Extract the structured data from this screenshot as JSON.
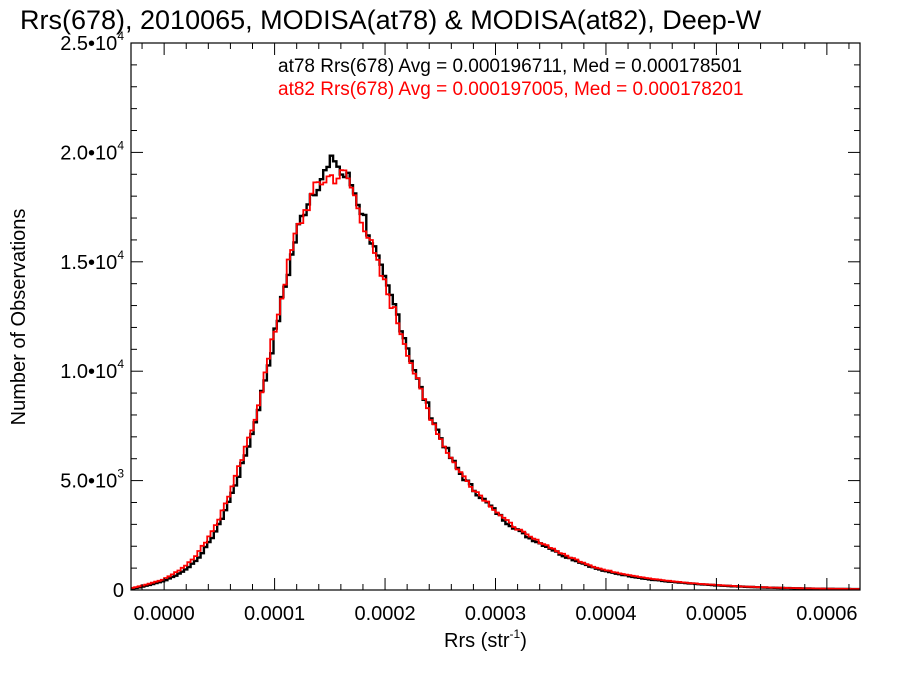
{
  "chart_data": {
    "type": "line",
    "title": "Rrs(678), 2010065, MODISA(at78) & MODISA(at82), Deep-W",
    "xlabel": "Rrs (str",
    "xlabel_exp": "-1",
    "xlabel_close": ")",
    "ylabel": "Number of Observations",
    "xlim": [
      -3e-05,
      0.00063
    ],
    "ylim": [
      0,
      25000
    ],
    "x_ticks": [
      {
        "value": 0.0,
        "label": "0.0000"
      },
      {
        "value": 0.0001,
        "label": "0.0001"
      },
      {
        "value": 0.0002,
        "label": "0.0002"
      },
      {
        "value": 0.0003,
        "label": "0.0003"
      },
      {
        "value": 0.0004,
        "label": "0.0004"
      },
      {
        "value": 0.0005,
        "label": "0.0005"
      },
      {
        "value": 0.0006,
        "label": "0.0006"
      }
    ],
    "y_ticks": [
      {
        "value": 0,
        "mant": "0",
        "exp": ""
      },
      {
        "value": 5000,
        "mant": "5.0•10",
        "exp": "3"
      },
      {
        "value": 10000,
        "mant": "1.0•10",
        "exp": "4"
      },
      {
        "value": 15000,
        "mant": "1.5•10",
        "exp": "4"
      },
      {
        "value": 20000,
        "mant": "2.0•10",
        "exp": "4"
      },
      {
        "value": 25000,
        "mant": "2.5•10",
        "exp": "4"
      }
    ],
    "bin_width": 3e-06,
    "series": [
      {
        "name": "at78",
        "color": "#000000",
        "legend": "at78 Rrs(678) Avg = 0.000196711, Med = 0.000178501",
        "x": [
          -3e-05,
          -2e-05,
          -1e-05,
          0.0,
          1e-05,
          2e-05,
          3e-05,
          4e-05,
          5e-05,
          6e-05,
          7e-05,
          8e-05,
          9e-05,
          0.0001,
          0.00011,
          0.00012,
          0.00013,
          0.00014,
          0.00015,
          0.000155,
          0.00016,
          0.000165,
          0.00017,
          0.00018,
          0.00019,
          0.0002,
          0.00021,
          0.00022,
          0.00023,
          0.00024,
          0.00025,
          0.00026,
          0.00027,
          0.00028,
          0.00029,
          0.0003,
          0.00031,
          0.00032,
          0.00033,
          0.00034,
          0.00035,
          0.00036,
          0.00037,
          0.00038,
          0.00039,
          0.0004,
          0.00042,
          0.00044,
          0.00046,
          0.00048,
          0.0005,
          0.00052,
          0.00054,
          0.00056,
          0.00058,
          0.0006,
          0.00063
        ],
        "y": [
          50,
          150,
          280,
          420,
          650,
          950,
          1400,
          2100,
          3000,
          4200,
          5600,
          7200,
          9300,
          11600,
          14000,
          16300,
          17800,
          18700,
          19300,
          19800,
          19000,
          18900,
          18500,
          17200,
          15600,
          14000,
          12800,
          11200,
          9500,
          8200,
          7000,
          6000,
          5200,
          4600,
          4100,
          3600,
          3100,
          2750,
          2400,
          2150,
          1900,
          1600,
          1400,
          1200,
          1000,
          850,
          650,
          480,
          370,
          280,
          210,
          160,
          120,
          90,
          70,
          55,
          40
        ]
      },
      {
        "name": "at82",
        "color": "#ff0000",
        "legend": "at82 Rrs(678) Avg = 0.000197005, Med = 0.000178201",
        "x": [
          -3e-05,
          -2e-05,
          -1e-05,
          0.0,
          1e-05,
          2e-05,
          3e-05,
          4e-05,
          5e-05,
          6e-05,
          7e-05,
          8e-05,
          9e-05,
          0.0001,
          0.00011,
          0.00012,
          0.00013,
          0.00014,
          0.00015,
          0.000155,
          0.00016,
          0.000165,
          0.00017,
          0.00018,
          0.00019,
          0.0002,
          0.00021,
          0.00022,
          0.00023,
          0.00024,
          0.00025,
          0.00026,
          0.00027,
          0.00028,
          0.00029,
          0.0003,
          0.00031,
          0.00032,
          0.00033,
          0.00034,
          0.00035,
          0.00036,
          0.00037,
          0.00038,
          0.00039,
          0.0004,
          0.00042,
          0.00044,
          0.00046,
          0.00048,
          0.0005,
          0.00052,
          0.00054,
          0.00056,
          0.00058,
          0.0006,
          0.00063
        ],
        "y": [
          80,
          200,
          340,
          500,
          780,
          1150,
          1650,
          2400,
          3300,
          4500,
          5900,
          7400,
          9500,
          11800,
          14300,
          16400,
          17600,
          18600,
          18900,
          18900,
          18900,
          19000,
          18300,
          16900,
          15300,
          13900,
          12500,
          11000,
          9400,
          8100,
          6950,
          6000,
          5250,
          4650,
          4150,
          3650,
          3150,
          2800,
          2450,
          2200,
          1950,
          1650,
          1450,
          1250,
          1050,
          900,
          700,
          520,
          400,
          300,
          230,
          170,
          130,
          100,
          75,
          60,
          45
        ]
      }
    ]
  }
}
